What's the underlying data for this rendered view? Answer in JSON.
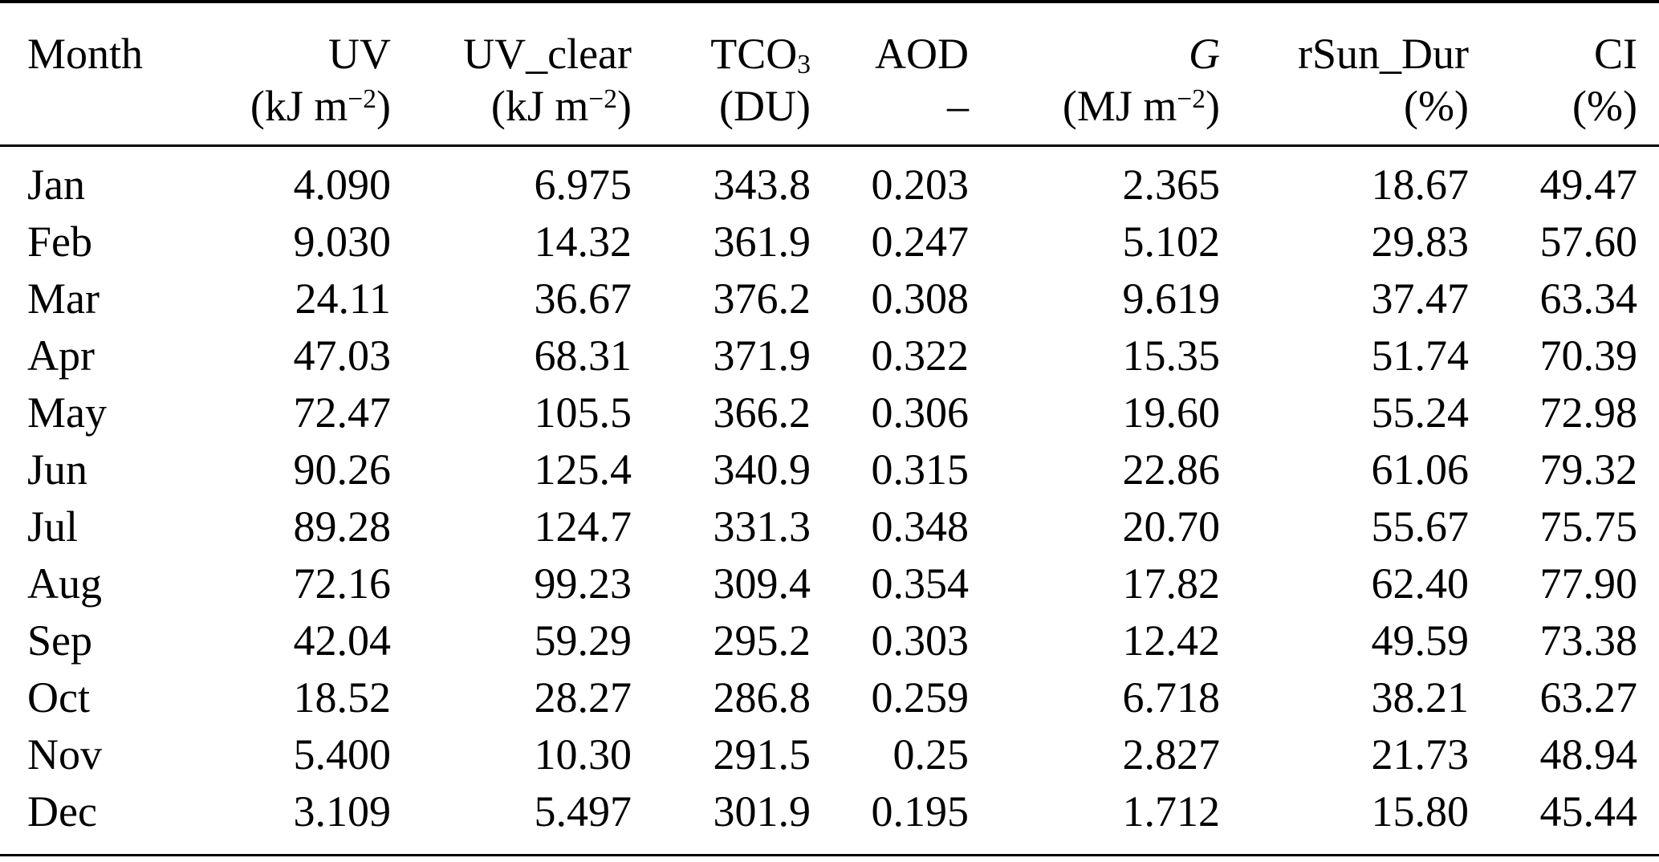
{
  "colors": {
    "text": "#000000",
    "background": "#ffffff",
    "rule": "#000000"
  },
  "table": {
    "columns": [
      {
        "label": "Month",
        "unit_pre": "",
        "unit_sup": "",
        "unit_post": ""
      },
      {
        "label": "UV",
        "unit_pre": "(kJ m",
        "unit_sup": "−2",
        "unit_post": ")"
      },
      {
        "label": "UV_clear",
        "unit_pre": "(kJ m",
        "unit_sup": "−2",
        "unit_post": ")"
      },
      {
        "label": "TCO",
        "label_sub": "3",
        "unit_pre": "(DU)",
        "unit_sup": "",
        "unit_post": ""
      },
      {
        "label": "AOD",
        "unit_pre": "–",
        "unit_sup": "",
        "unit_post": ""
      },
      {
        "label": "G",
        "unit_pre": "(MJ m",
        "unit_sup": "−2",
        "unit_post": ")"
      },
      {
        "label": "rSun_Dur",
        "unit_pre": "(%)",
        "unit_sup": "",
        "unit_post": ""
      },
      {
        "label": "CI",
        "unit_pre": "(%)",
        "unit_sup": "",
        "unit_post": ""
      }
    ],
    "rows": [
      {
        "cells": [
          "Jan",
          "4.090",
          "6.975",
          "343.8",
          "0.203",
          "2.365",
          "18.67",
          "49.47"
        ]
      },
      {
        "cells": [
          "Feb",
          "9.030",
          "14.32",
          "361.9",
          "0.247",
          "5.102",
          "29.83",
          "57.60"
        ]
      },
      {
        "cells": [
          "Mar",
          "24.11",
          "36.67",
          "376.2",
          "0.308",
          "9.619",
          "37.47",
          "63.34"
        ]
      },
      {
        "cells": [
          "Apr",
          "47.03",
          "68.31",
          "371.9",
          "0.322",
          "15.35",
          "51.74",
          "70.39"
        ]
      },
      {
        "cells": [
          "May",
          "72.47",
          "105.5",
          "366.2",
          "0.306",
          "19.60",
          "55.24",
          "72.98"
        ]
      },
      {
        "cells": [
          "Jun",
          "90.26",
          "125.4",
          "340.9",
          "0.315",
          "22.86",
          "61.06",
          "79.32"
        ]
      },
      {
        "cells": [
          "Jul",
          "89.28",
          "124.7",
          "331.3",
          "0.348",
          "20.70",
          "55.67",
          "75.75"
        ]
      },
      {
        "cells": [
          "Aug",
          "72.16",
          "99.23",
          "309.4",
          "0.354",
          "17.82",
          "62.40",
          "77.90"
        ]
      },
      {
        "cells": [
          "Sep",
          "42.04",
          "59.29",
          "295.2",
          "0.303",
          "12.42",
          "49.59",
          "73.38"
        ]
      },
      {
        "cells": [
          "Oct",
          "18.52",
          "28.27",
          "286.8",
          "0.259",
          "6.718",
          "38.21",
          "63.27"
        ]
      },
      {
        "cells": [
          "Nov",
          "5.400",
          "10.30",
          "291.5",
          "0.25",
          "2.827",
          "21.73",
          "48.94"
        ]
      },
      {
        "cells": [
          "Dec",
          "3.109",
          "5.497",
          "301.9",
          "0.195",
          "1.712",
          "15.80",
          "45.44"
        ]
      }
    ]
  }
}
